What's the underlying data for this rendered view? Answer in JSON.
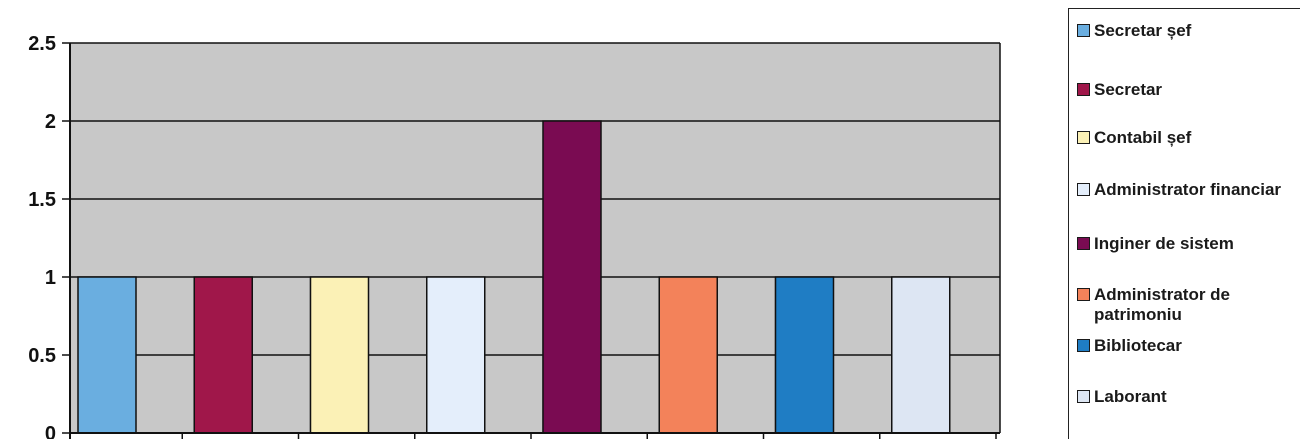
{
  "chart_data": {
    "type": "bar",
    "title": "",
    "xlabel": "",
    "ylabel": "",
    "ylim": [
      0,
      2.5
    ],
    "y_ticks": [
      "0",
      "0.5",
      "1",
      "1.5",
      "2",
      "2.5"
    ],
    "grid": true,
    "legend_position": "right",
    "background": "#c8c8c8",
    "series": [
      {
        "name": "Secretar șef",
        "value": 1,
        "color": "#6aaee0"
      },
      {
        "name": "Secretar",
        "value": 1,
        "color": "#a0174a"
      },
      {
        "name": "Contabil șef",
        "value": 1,
        "color": "#fbf1b6"
      },
      {
        "name": "Administrator financiar",
        "value": 1,
        "color": "#e4eefb"
      },
      {
        "name": "Inginer de sistem",
        "value": 2,
        "color": "#7a0b52"
      },
      {
        "name": "Administrator de patrimoniu",
        "value": 1,
        "color": "#f3825a"
      },
      {
        "name": "Bibliotecar",
        "value": 1,
        "color": "#1f7dc4"
      },
      {
        "name": "Laborant",
        "value": 1,
        "color": "#dde6f3"
      }
    ]
  }
}
